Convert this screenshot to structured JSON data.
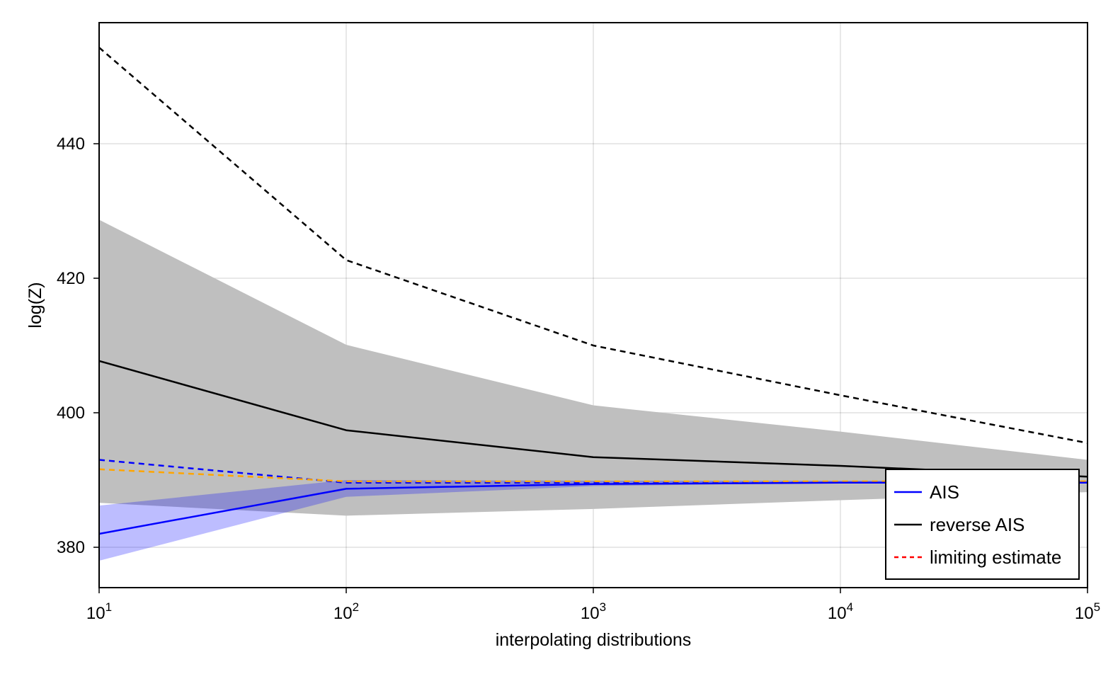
{
  "chart_data": {
    "type": "line",
    "xscale": "log10",
    "xlim": [
      10,
      100000
    ],
    "ylim": [
      374,
      458
    ],
    "x": [
      10,
      100,
      1000,
      10000,
      100000
    ],
    "x_ticks": [
      {
        "base": "10",
        "exp": "1"
      },
      {
        "base": "10",
        "exp": "2"
      },
      {
        "base": "10",
        "exp": "3"
      },
      {
        "base": "10",
        "exp": "4"
      },
      {
        "base": "10",
        "exp": "5"
      }
    ],
    "y_ticks": [
      380,
      400,
      420,
      440
    ],
    "y_tick_labels": [
      "380",
      "400",
      "420",
      "440"
    ],
    "xlabel": "interpolating distributions",
    "ylabel": "log(Z)",
    "grid": true,
    "legend_position": "bottom-right",
    "bands": [
      {
        "color": "#bfbfbf",
        "opacity": 1,
        "lower": [
          386.6,
          384.7,
          385.7,
          387.0,
          388.2
        ],
        "upper": [
          428.7,
          410.1,
          401.1,
          397.2,
          393.0
        ]
      },
      {
        "color": "#0000ff",
        "opacity": 0.26,
        "lower": [
          378.0,
          387.5,
          389.1,
          389.6,
          389.7
        ],
        "upper": [
          386.2,
          390.0,
          389.9,
          389.9,
          389.9
        ]
      }
    ],
    "series": [
      {
        "color": "#000000",
        "dash": "dashed",
        "values": [
          454.3,
          422.7,
          410.0,
          402.6,
          395.5
        ]
      },
      {
        "color": "#000000",
        "dash": "solid",
        "values": [
          407.7,
          397.4,
          393.4,
          392.1,
          390.5
        ]
      },
      {
        "color": "#0000ff",
        "dash": "dashed",
        "values": [
          393.0,
          389.6,
          389.6,
          389.6,
          389.6
        ]
      },
      {
        "color": "#ffa500",
        "dash": "dashed",
        "values": [
          391.6,
          389.8,
          389.8,
          389.8,
          389.8
        ]
      },
      {
        "color": "#0000ff",
        "dash": "solid",
        "values": [
          382.0,
          388.7,
          389.4,
          389.6,
          389.6
        ]
      }
    ],
    "legend": [
      {
        "label": "AIS",
        "color": "#0000ff",
        "dash": "solid"
      },
      {
        "label": "reverse AIS",
        "color": "#000000",
        "dash": "solid"
      },
      {
        "label": "limiting estimate",
        "color": "#ff0000",
        "dash": "dashed"
      }
    ]
  }
}
